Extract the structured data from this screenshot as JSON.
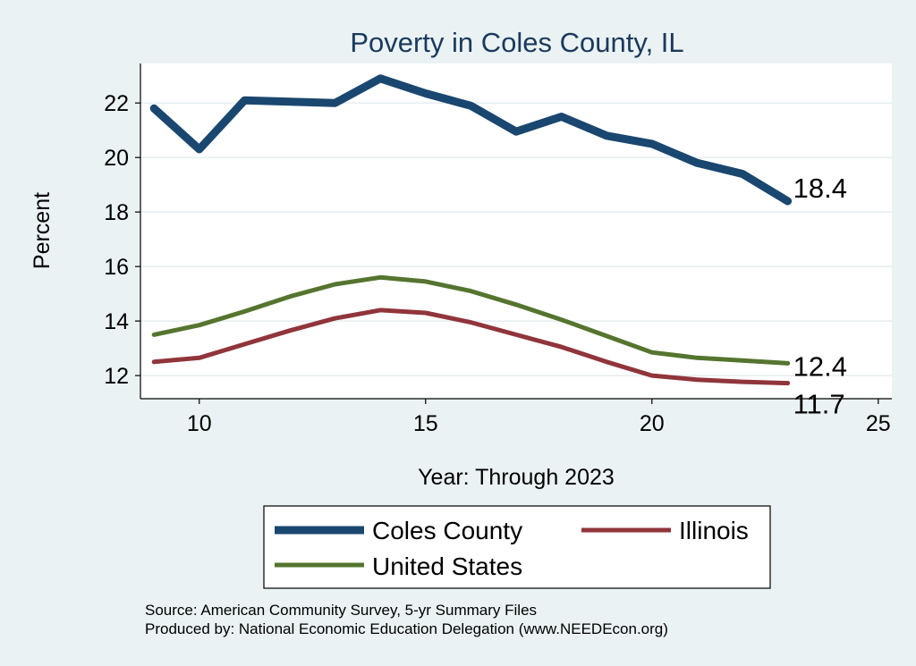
{
  "chart_data": {
    "type": "line",
    "title": "Poverty in Coles County, IL",
    "xlabel": "Year: Through 2023",
    "ylabel": "Percent",
    "xlim": [
      8.7,
      25.3
    ],
    "ylim": [
      11.15,
      23.45
    ],
    "xticks": [
      10,
      15,
      20,
      25
    ],
    "yticks": [
      12,
      14,
      16,
      18,
      20,
      22
    ],
    "grid": true,
    "x": [
      9,
      10,
      11,
      12,
      13,
      14,
      15,
      16,
      17,
      18,
      19,
      20,
      21,
      22,
      23
    ],
    "series": [
      {
        "name": "Coles County",
        "color": "#1a476f",
        "values": [
          21.8,
          20.3,
          22.1,
          22.05,
          22.0,
          22.9,
          22.35,
          21.9,
          20.95,
          21.5,
          20.8,
          20.5,
          19.8,
          19.4,
          18.4
        ],
        "end_label": "18.4"
      },
      {
        "name": "Illinois",
        "color": "#90353b",
        "values": [
          12.5,
          12.65,
          13.15,
          13.65,
          14.1,
          14.4,
          14.3,
          13.95,
          13.5,
          13.05,
          12.5,
          12.0,
          11.85,
          11.77,
          11.72
        ],
        "end_label": "11.7"
      },
      {
        "name": "United States",
        "color": "#55752f",
        "values": [
          13.5,
          13.85,
          14.35,
          14.9,
          15.35,
          15.6,
          15.45,
          15.1,
          14.6,
          14.05,
          13.45,
          12.85,
          12.65,
          12.55,
          12.45
        ],
        "end_label": "12.4"
      }
    ],
    "legend": {
      "position": "bottom",
      "entries": [
        "Coles County",
        "Illinois",
        "United States"
      ]
    },
    "source_lines": [
      "Source: American Community Survey, 5-yr Summary Files",
      "Produced by: National Economic Education Delegation (www.NEEDEcon.org)"
    ]
  }
}
